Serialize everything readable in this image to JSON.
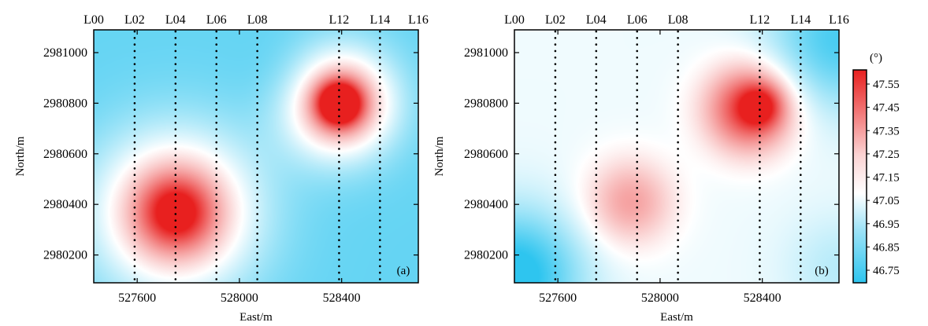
{
  "chart_data": {
    "type": "heatmap",
    "colorbar": {
      "unit_label": "(°)",
      "ticks": [
        "47.55",
        "47.45",
        "47.35",
        "47.25",
        "47.15",
        "47.05",
        "46.95",
        "46.85",
        "46.75"
      ],
      "range": [
        46.7,
        47.6
      ],
      "colors": {
        "low": "#2ec5ef",
        "mid": "#ffffff",
        "high": "#e8201f"
      }
    },
    "panels": [
      {
        "letter": "(a)",
        "xlabel": "East/m",
        "ylabel": "North/m",
        "xlim": [
          527430,
          528700
        ],
        "ylim": [
          2980090,
          2981090
        ],
        "xticks": [
          "527600",
          "528000",
          "528400"
        ],
        "xtick_values": [
          527600,
          528000,
          528400
        ],
        "yticks": [
          "2981000",
          "2980800",
          "2980600",
          "2980400",
          "2980200"
        ],
        "ytick_values": [
          2981000,
          2980800,
          2980600,
          2980400,
          2980200
        ],
        "survey_lines": [
          {
            "label": "L00",
            "east": 527430
          },
          {
            "label": "L02",
            "east": 527590
          },
          {
            "label": "L04",
            "east": 527750
          },
          {
            "label": "L06",
            "east": 527910
          },
          {
            "label": "L08",
            "east": 528070
          },
          {
            "label": "L12",
            "east": 528390
          },
          {
            "label": "L14",
            "east": 528550
          },
          {
            "label": "L16",
            "east": 528700
          }
        ],
        "field": {
          "base": 46.8,
          "anomalies": [
            {
              "east": 527750,
              "north": 2980370,
              "amp": 0.55,
              "sigma": 220,
              "type": "halo"
            },
            {
              "east": 527750,
              "north": 2980370,
              "amp": 0.4,
              "sigma": 90,
              "type": "core"
            },
            {
              "east": 528390,
              "north": 2980800,
              "amp": 0.6,
              "sigma": 150,
              "type": "halo"
            },
            {
              "east": 528390,
              "north": 2980800,
              "amp": 0.75,
              "sigma": 55,
              "type": "core"
            },
            {
              "east": 528200,
              "north": 2980900,
              "amp": -0.05,
              "sigma": 120,
              "type": "halo"
            }
          ]
        }
      },
      {
        "letter": "(b)",
        "xlabel": "East/m",
        "ylabel": "North/m",
        "xlim": [
          527430,
          528700
        ],
        "ylim": [
          2980090,
          2981090
        ],
        "xticks": [
          "527600",
          "528000",
          "528400"
        ],
        "xtick_values": [
          527600,
          528000,
          528400
        ],
        "yticks": [
          "2981000",
          "2980800",
          "2980600",
          "2980400",
          "2980200"
        ],
        "ytick_values": [
          2981000,
          2980800,
          2980600,
          2980400,
          2980200
        ],
        "survey_lines": [
          {
            "label": "L00",
            "east": 527430
          },
          {
            "label": "L02",
            "east": 527590
          },
          {
            "label": "L04",
            "east": 527750
          },
          {
            "label": "L06",
            "east": 527910
          },
          {
            "label": "L08",
            "east": 528070
          },
          {
            "label": "L12",
            "east": 528390
          },
          {
            "label": "L14",
            "east": 528550
          },
          {
            "label": "L16",
            "east": 528700
          }
        ],
        "field": {
          "base": 47.05,
          "anomalies": [
            {
              "east": 527880,
              "north": 2980410,
              "amp": 0.25,
              "sigma": 120,
              "type": "core"
            },
            {
              "east": 528350,
              "north": 2980780,
              "amp": 0.5,
              "sigma": 120,
              "type": "core"
            },
            {
              "east": 528390,
              "north": 2980790,
              "amp": 0.3,
              "sigma": 55,
              "type": "core"
            },
            {
              "east": 527430,
              "north": 2980120,
              "amp": -0.4,
              "sigma": 180,
              "type": "halo"
            },
            {
              "east": 528700,
              "north": 2981060,
              "amp": -0.3,
              "sigma": 200,
              "type": "halo"
            },
            {
              "east": 528700,
              "north": 2980150,
              "amp": -0.1,
              "sigma": 150,
              "type": "halo"
            }
          ]
        }
      }
    ]
  }
}
